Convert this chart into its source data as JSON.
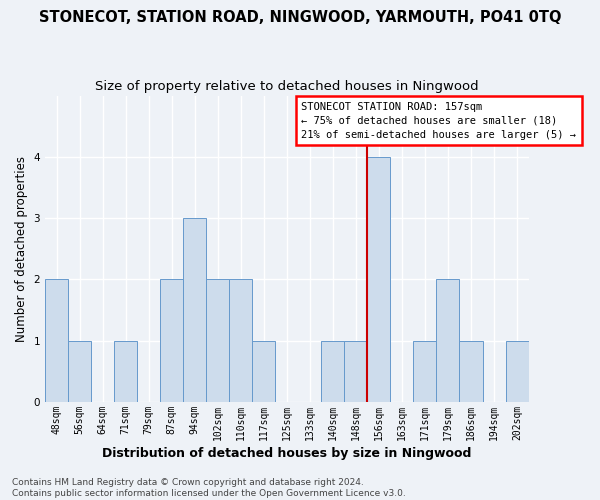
{
  "title": "STONECOT, STATION ROAD, NINGWOOD, YARMOUTH, PO41 0TQ",
  "subtitle": "Size of property relative to detached houses in Ningwood",
  "xlabel": "Distribution of detached houses by size in Ningwood",
  "ylabel": "Number of detached properties",
  "categories": [
    "48sqm",
    "56sqm",
    "64sqm",
    "71sqm",
    "79sqm",
    "87sqm",
    "94sqm",
    "102sqm",
    "110sqm",
    "117sqm",
    "125sqm",
    "133sqm",
    "140sqm",
    "148sqm",
    "156sqm",
    "163sqm",
    "171sqm",
    "179sqm",
    "186sqm",
    "194sqm",
    "202sqm"
  ],
  "values": [
    2,
    1,
    0,
    1,
    0,
    2,
    3,
    2,
    2,
    1,
    0,
    0,
    1,
    1,
    4,
    0,
    1,
    2,
    1,
    0,
    1
  ],
  "bar_color": "#cddcec",
  "bar_edge_color": "#6699cc",
  "highlight_index": 14,
  "highlight_color": "#cc0000",
  "ylim": [
    0,
    5
  ],
  "yticks": [
    0,
    1,
    2,
    3,
    4
  ],
  "annotation_title": "STONECOT STATION ROAD: 157sqm",
  "annotation_line1": "← 75% of detached houses are smaller (18)",
  "annotation_line2": "21% of semi-detached houses are larger (5) →",
  "footer_line1": "Contains HM Land Registry data © Crown copyright and database right 2024.",
  "footer_line2": "Contains public sector information licensed under the Open Government Licence v3.0.",
  "bg_color": "#eef2f7",
  "grid_color": "#ffffff",
  "title_fontsize": 10.5,
  "subtitle_fontsize": 9.5,
  "ylabel_fontsize": 8.5,
  "xlabel_fontsize": 9,
  "tick_fontsize": 7,
  "footer_fontsize": 6.5,
  "ann_fontsize": 7.5
}
